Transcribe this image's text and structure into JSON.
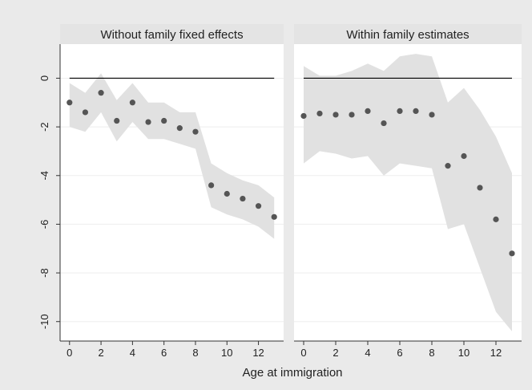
{
  "chart_data": {
    "type": "scatter",
    "xlabel": "Age at immigration",
    "ylabel": "",
    "xlim": [
      -0.6,
      13.6
    ],
    "ylim": [
      -10.8,
      1.4
    ],
    "x_ticks": [
      0,
      2,
      4,
      6,
      8,
      10,
      12
    ],
    "y_ticks": [
      0,
      -2,
      -4,
      -6,
      -8,
      -10
    ],
    "reference_line": 0,
    "grid": "horizontal",
    "colors": {
      "background": "#eaeaea",
      "plot_area": "#ffffff",
      "strip": "#e4e4e4",
      "confidence_band": "#e1e1e1",
      "point": "#555555",
      "reference_line": "#000000",
      "grid": "#eeeeee"
    },
    "panels": [
      {
        "title": "Without family fixed effects",
        "x": [
          0,
          1,
          2,
          3,
          4,
          5,
          6,
          7,
          8,
          9,
          10,
          11,
          12,
          13
        ],
        "y": [
          -1.0,
          -1.4,
          -0.6,
          -1.75,
          -1.0,
          -1.8,
          -1.75,
          -2.05,
          -2.2,
          -4.4,
          -4.75,
          -4.95,
          -5.25,
          -5.7
        ],
        "ci_low": [
          -2.0,
          -2.2,
          -1.4,
          -2.6,
          -1.8,
          -2.5,
          -2.5,
          -2.7,
          -2.9,
          -5.3,
          -5.6,
          -5.8,
          -6.1,
          -6.6
        ],
        "ci_high": [
          -0.2,
          -0.6,
          0.2,
          -0.9,
          -0.2,
          -1.0,
          -1.0,
          -1.4,
          -1.4,
          -3.5,
          -3.9,
          -4.2,
          -4.4,
          -4.9
        ]
      },
      {
        "title": "Within family estimates",
        "x": [
          0,
          1,
          2,
          3,
          4,
          5,
          6,
          7,
          8,
          9,
          10,
          11,
          12,
          13
        ],
        "y": [
          -1.55,
          -1.45,
          -1.5,
          -1.5,
          -1.35,
          -1.85,
          -1.35,
          -1.35,
          -1.5,
          -3.6,
          -3.2,
          -4.5,
          -5.8,
          -7.2
        ],
        "ci_low": [
          -3.5,
          -3.0,
          -3.1,
          -3.3,
          -3.2,
          -4.0,
          -3.5,
          -3.6,
          -3.7,
          -6.2,
          -6.0,
          -7.8,
          -9.6,
          -10.4
        ],
        "ci_high": [
          0.5,
          0.1,
          0.1,
          0.3,
          0.6,
          0.3,
          0.9,
          1.0,
          0.9,
          -1.0,
          -0.4,
          -1.3,
          -2.4,
          -3.9
        ]
      }
    ]
  }
}
